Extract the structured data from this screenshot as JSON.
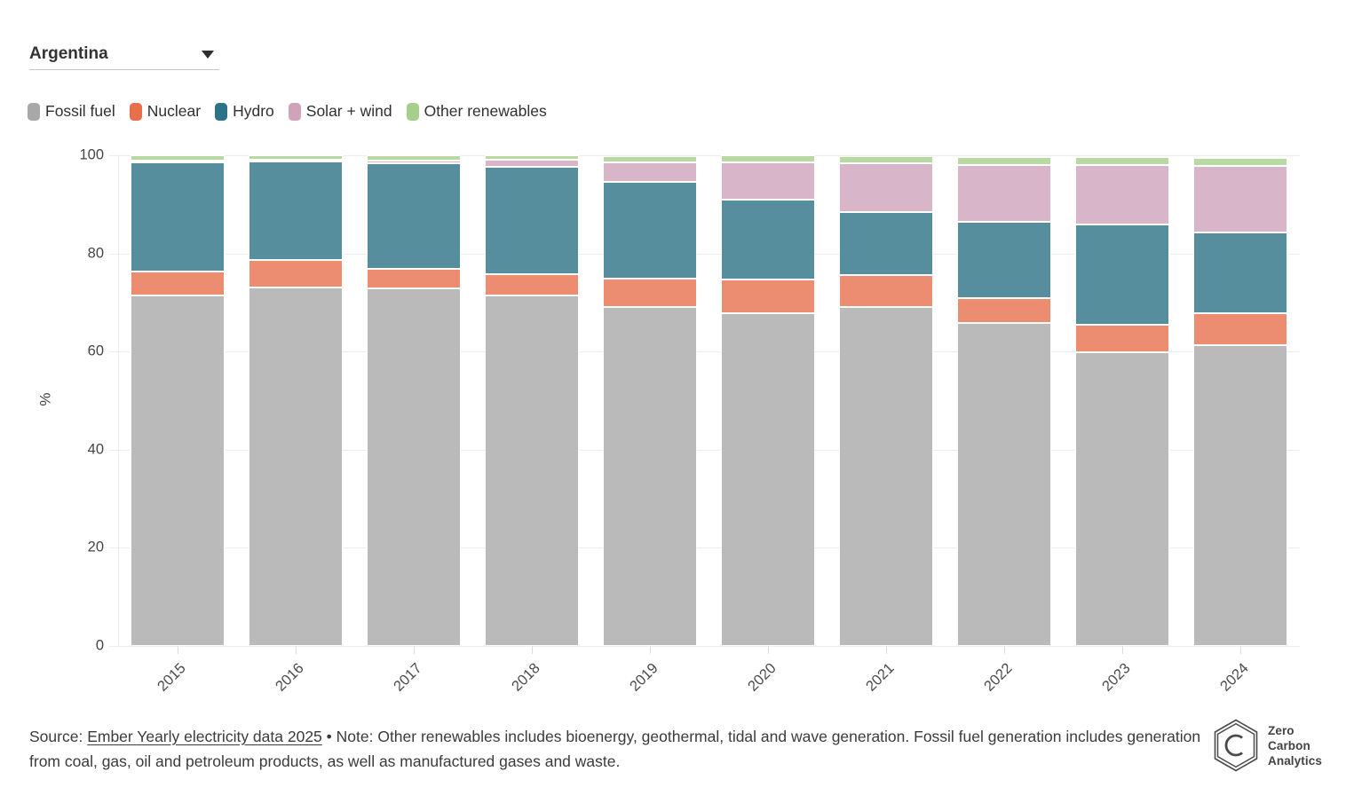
{
  "dropdown": {
    "value": "Argentina"
  },
  "chart_data": {
    "type": "bar",
    "stacked": true,
    "title": "",
    "xlabel": "",
    "ylabel": "%",
    "ylim": [
      0,
      100
    ],
    "yticks": [
      0,
      20,
      40,
      60,
      80,
      100
    ],
    "grid": true,
    "legend_position": "top",
    "categories": [
      "2015",
      "2016",
      "2017",
      "2018",
      "2019",
      "2020",
      "2021",
      "2022",
      "2023",
      "2024"
    ],
    "series": [
      {
        "name": "Fossil fuel",
        "legend_color": "#a8a8a8",
        "bar_color": "#bababa",
        "values": [
          71.5,
          73.0,
          72.8,
          71.4,
          69.0,
          67.8,
          69.1,
          65.9,
          59.9,
          61.3
        ]
      },
      {
        "name": "Nuclear",
        "legend_color": "#e76f4c",
        "bar_color": "#ec8c70",
        "values": [
          4.9,
          5.6,
          4.0,
          4.4,
          5.9,
          6.8,
          6.4,
          5.0,
          5.6,
          6.5
        ]
      },
      {
        "name": "Hydro",
        "legend_color": "#2d7286",
        "bar_color": "#578e9e",
        "values": [
          22.2,
          20.1,
          21.6,
          21.9,
          19.6,
          16.3,
          12.9,
          15.5,
          20.4,
          16.4
        ]
      },
      {
        "name": "Solar + wind",
        "legend_color": "#d0a3bb",
        "bar_color": "#d9b5c9",
        "values": [
          0.4,
          0.4,
          0.6,
          1.4,
          4.0,
          7.6,
          9.9,
          11.6,
          12.1,
          13.6
        ]
      },
      {
        "name": "Other renewables",
        "legend_color": "#a7cf8c",
        "bar_color": "#b9d9a3",
        "values": [
          1.0,
          0.9,
          1.0,
          0.9,
          1.3,
          1.5,
          1.6,
          1.7,
          1.6,
          1.6
        ]
      }
    ]
  },
  "footer": {
    "source_prefix": "Source: ",
    "source_link": "Ember Yearly electricity data 2025",
    "separator": " • ",
    "note": "Note: Other renewables includes bioenergy, geothermal, tidal and wave generation. Fossil fuel generation includes generation from coal, gas, oil and petroleum products, as well as manufactured gases and waste."
  },
  "logo": {
    "letter": "C",
    "lines": [
      "Zero",
      "Carbon",
      "Analytics"
    ]
  }
}
